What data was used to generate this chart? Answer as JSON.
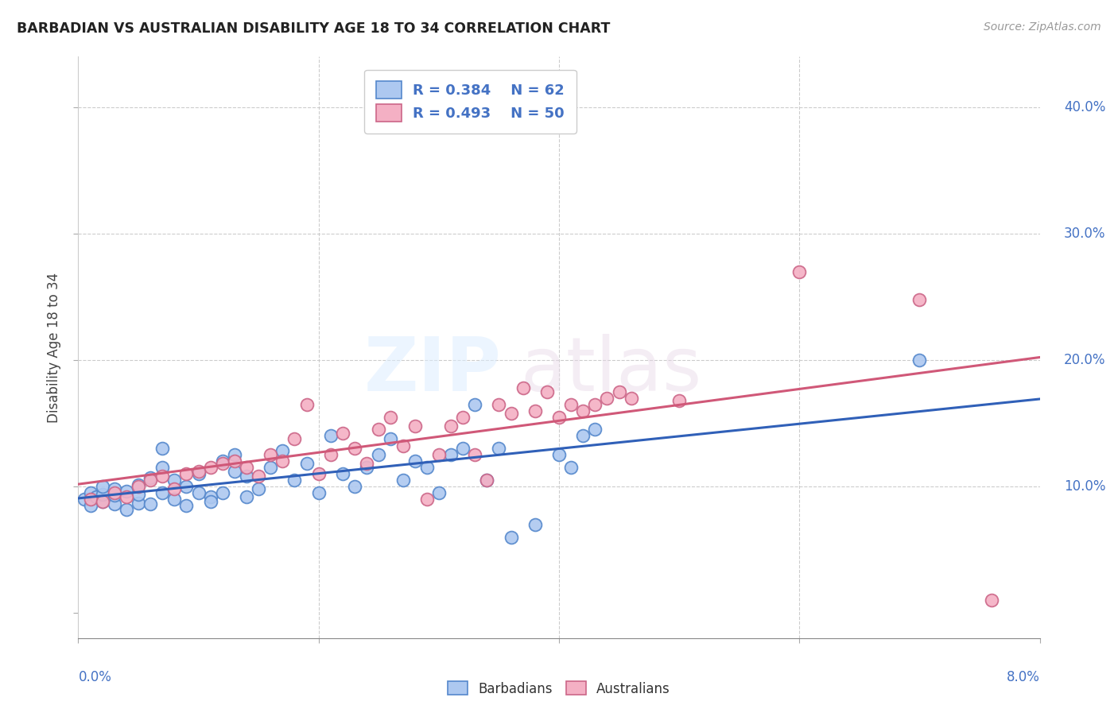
{
  "title": "BARBADIAN VS AUSTRALIAN DISABILITY AGE 18 TO 34 CORRELATION CHART",
  "source": "Source: ZipAtlas.com",
  "ylabel": "Disability Age 18 to 34",
  "xlim": [
    0.0,
    0.08
  ],
  "ylim": [
    -0.02,
    0.44
  ],
  "barbadian_color": "#adc8f0",
  "australian_color": "#f4b0c4",
  "barbadian_edge_color": "#5588cc",
  "australian_edge_color": "#cc6688",
  "barbadian_line_color": "#3060b8",
  "australian_line_color": "#d05878",
  "barb_R": 0.384,
  "barb_N": 62,
  "aust_R": 0.493,
  "aust_N": 50,
  "barbadian_x": [
    0.0005,
    0.001,
    0.001,
    0.0015,
    0.002,
    0.002,
    0.002,
    0.003,
    0.003,
    0.003,
    0.004,
    0.004,
    0.005,
    0.005,
    0.005,
    0.006,
    0.006,
    0.007,
    0.007,
    0.007,
    0.008,
    0.008,
    0.009,
    0.009,
    0.01,
    0.01,
    0.011,
    0.011,
    0.012,
    0.012,
    0.013,
    0.013,
    0.014,
    0.014,
    0.015,
    0.016,
    0.017,
    0.018,
    0.019,
    0.02,
    0.021,
    0.022,
    0.023,
    0.024,
    0.025,
    0.026,
    0.027,
    0.028,
    0.029,
    0.03,
    0.031,
    0.032,
    0.033,
    0.034,
    0.035,
    0.036,
    0.038,
    0.04,
    0.041,
    0.042,
    0.043,
    0.07
  ],
  "barbadian_y": [
    0.09,
    0.095,
    0.085,
    0.092,
    0.088,
    0.094,
    0.1,
    0.086,
    0.093,
    0.098,
    0.082,
    0.096,
    0.087,
    0.094,
    0.101,
    0.086,
    0.107,
    0.13,
    0.115,
    0.095,
    0.09,
    0.105,
    0.085,
    0.1,
    0.095,
    0.11,
    0.092,
    0.088,
    0.12,
    0.095,
    0.112,
    0.125,
    0.108,
    0.092,
    0.098,
    0.115,
    0.128,
    0.105,
    0.118,
    0.095,
    0.14,
    0.11,
    0.1,
    0.115,
    0.125,
    0.138,
    0.105,
    0.12,
    0.115,
    0.095,
    0.125,
    0.13,
    0.165,
    0.105,
    0.13,
    0.06,
    0.07,
    0.125,
    0.115,
    0.14,
    0.145,
    0.2
  ],
  "australian_x": [
    0.001,
    0.002,
    0.003,
    0.004,
    0.005,
    0.006,
    0.007,
    0.008,
    0.009,
    0.01,
    0.011,
    0.012,
    0.013,
    0.014,
    0.015,
    0.016,
    0.017,
    0.018,
    0.019,
    0.02,
    0.021,
    0.022,
    0.023,
    0.024,
    0.025,
    0.026,
    0.027,
    0.028,
    0.029,
    0.03,
    0.031,
    0.032,
    0.033,
    0.034,
    0.035,
    0.036,
    0.037,
    0.038,
    0.039,
    0.04,
    0.041,
    0.042,
    0.043,
    0.044,
    0.045,
    0.046,
    0.05,
    0.06,
    0.07,
    0.076
  ],
  "australian_y": [
    0.09,
    0.088,
    0.095,
    0.092,
    0.1,
    0.105,
    0.108,
    0.098,
    0.11,
    0.112,
    0.115,
    0.118,
    0.12,
    0.115,
    0.108,
    0.125,
    0.12,
    0.138,
    0.165,
    0.11,
    0.125,
    0.142,
    0.13,
    0.118,
    0.145,
    0.155,
    0.132,
    0.148,
    0.09,
    0.125,
    0.148,
    0.155,
    0.125,
    0.105,
    0.165,
    0.158,
    0.178,
    0.16,
    0.175,
    0.155,
    0.165,
    0.16,
    0.165,
    0.17,
    0.175,
    0.17,
    0.168,
    0.27,
    0.248,
    0.01
  ]
}
